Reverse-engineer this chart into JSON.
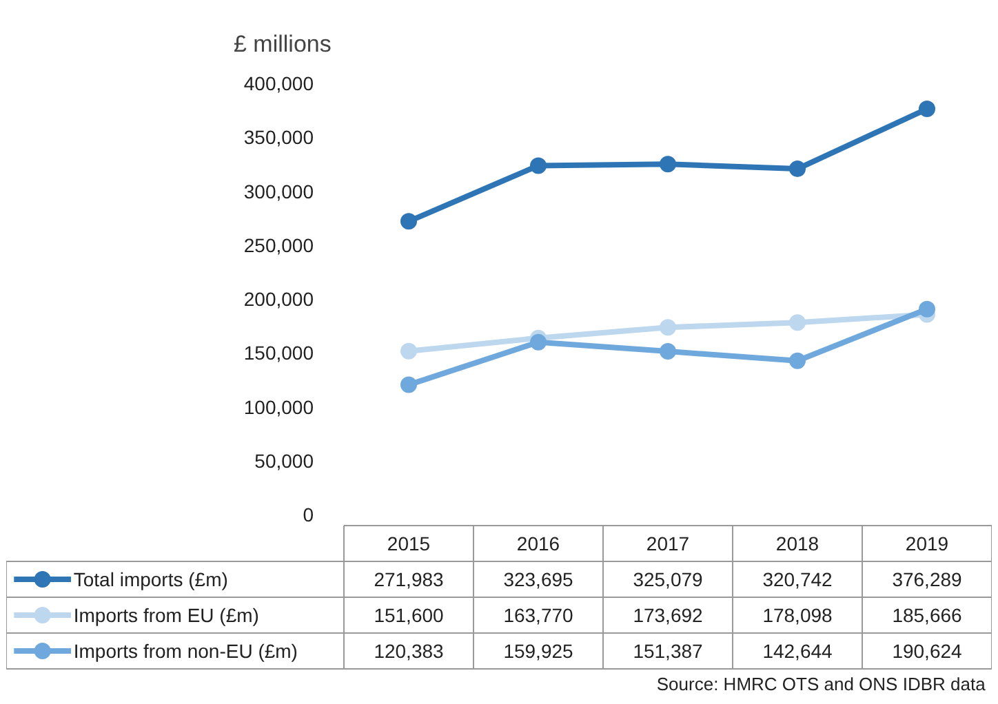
{
  "chart_data": {
    "type": "line",
    "ylabel": "£ millions",
    "categories": [
      "2015",
      "2016",
      "2017",
      "2018",
      "2019"
    ],
    "series": [
      {
        "name": "Total imports (£m)",
        "color": "#2e75b6",
        "values": [
          271983,
          323695,
          325079,
          320742,
          376289
        ],
        "value_labels": [
          "271,983",
          "323,695",
          "325,079",
          "320,742",
          "376,289"
        ]
      },
      {
        "name": "Imports from EU (£m)",
        "color": "#bdd7ee",
        "values": [
          151600,
          163770,
          173692,
          178098,
          185666
        ],
        "value_labels": [
          "151,600",
          "163,770",
          "173,692",
          "178,098",
          "185,666"
        ]
      },
      {
        "name": "Imports from non-EU (£m)",
        "color": "#6fa8dc",
        "values": [
          120383,
          159925,
          151387,
          142644,
          190624
        ],
        "value_labels": [
          "120,383",
          "159,925",
          "151,387",
          "142,644",
          "190,624"
        ]
      }
    ],
    "ylim": [
      0,
      400000
    ],
    "yticks": [
      {
        "value": 0,
        "label": "0"
      },
      {
        "value": 50000,
        "label": "50,000"
      },
      {
        "value": 100000,
        "label": "100,000"
      },
      {
        "value": 150000,
        "label": "150,000"
      },
      {
        "value": 200000,
        "label": "200,000"
      },
      {
        "value": 250000,
        "label": "250,000"
      },
      {
        "value": 300000,
        "label": "300,000"
      },
      {
        "value": 350000,
        "label": "350,000"
      },
      {
        "value": 400000,
        "label": "400,000"
      }
    ],
    "grid": false,
    "legend": "bottom",
    "marker": "circle",
    "line_style": "solid",
    "tick_labels": "y",
    "annotations": [
      "Source: HMRC OTS and ONS IDBR data"
    ]
  }
}
